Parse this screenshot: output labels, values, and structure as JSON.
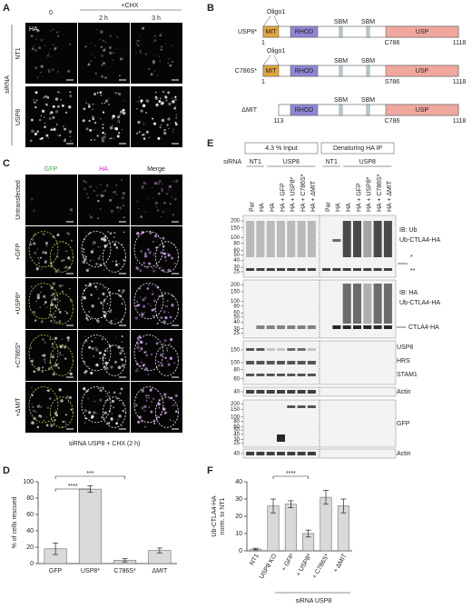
{
  "panel_a": {
    "label": "A",
    "timepoints": [
      "0",
      "2 h",
      "3 h"
    ],
    "treatment": "+CHX",
    "stain": "HA",
    "rows": [
      "NT1",
      "USP8"
    ],
    "row_group": "siRNA"
  },
  "panel_b": {
    "label": "B",
    "constructs": [
      {
        "name": "USP8*",
        "oligo": "Oligo1",
        "domains": [
          "MIT",
          "RHOD",
          "SBM",
          "SBM",
          "USP"
        ],
        "start": "1",
        "residue": "C786",
        "end": "1118"
      },
      {
        "name": "C786S*",
        "oligo": "Oligo1",
        "domains": [
          "MIT",
          "RHOD",
          "SBM",
          "SBM",
          "USP"
        ],
        "start": "1",
        "residue": "S786",
        "end": "1118"
      },
      {
        "name": "ΔMIT",
        "domains": [
          "RHOD",
          "SBM",
          "SBM",
          "USP"
        ],
        "start": "113",
        "residue": "C786",
        "end": "1118"
      }
    ]
  },
  "panel_c": {
    "label": "C",
    "columns": [
      "GFP",
      "HA",
      "Merge"
    ],
    "rows": [
      "Untransfected",
      "+GFP",
      "+USP8*",
      "+C786S*",
      "+ΔMIT"
    ],
    "caption": "siRNA USP8 + CHX (2 h)"
  },
  "panel_e": {
    "label": "E",
    "input_title": "4.3 % Input",
    "ip_title": "Denaturing HA IP",
    "sirna": "siRNA",
    "input_groups": [
      "NT1",
      "USP8"
    ],
    "ip_groups": [
      "NT1",
      "USP8"
    ],
    "input_lanes": [
      "Par",
      "HA",
      "HA",
      "HA + GFP",
      "HA + USP8*",
      "HA + C786S*",
      "HA + ΔMIT"
    ],
    "ip_lanes": [
      "Par",
      "HA",
      "HA",
      "HA + GFP",
      "HA + USP8*",
      "HA + C786S*",
      "HA + ΔMIT"
    ],
    "blots": [
      {
        "markers": [
          200,
          150,
          100,
          80,
          60,
          50,
          40,
          30,
          25
        ],
        "labels": [
          "IB: Ub",
          "Ub-CTLA4-HA",
          "*",
          "**"
        ]
      },
      {
        "markers": [
          200,
          150,
          100,
          80,
          60,
          50,
          40,
          30,
          25
        ],
        "labels": [
          "IB: HA",
          "Ub-CTLA4-HA",
          "CTLA4-HA"
        ]
      },
      {
        "markers": [
          150,
          100,
          80,
          60
        ],
        "labels": [
          "USP8",
          "HRS",
          "STAM1"
        ]
      },
      {
        "markers": [
          40
        ],
        "labels": [
          "Actin"
        ]
      },
      {
        "markers": [
          200,
          150,
          100,
          80,
          60,
          50,
          40,
          30,
          25
        ],
        "labels": [
          "GFP"
        ]
      },
      {
        "markers": [
          40
        ],
        "labels": [
          "Actin"
        ]
      }
    ]
  },
  "chart_data": [
    {
      "type": "bar",
      "label": "D",
      "ylabel": [
        "% of cells rescued"
      ],
      "categories": [
        "GFP",
        "USP8*",
        "C786S*",
        "ΔMIT"
      ],
      "values": [
        18,
        91,
        4,
        16
      ],
      "errors": [
        7,
        4,
        2,
        3
      ],
      "color": "#d9d9d9",
      "ylim": [
        0,
        100
      ],
      "yticks": [
        0,
        20,
        40,
        60,
        80,
        100
      ],
      "annotations": [
        "****",
        "***"
      ]
    },
    {
      "type": "bar",
      "label": "F",
      "ylabel": [
        "Ub-CTLA4-HA",
        "norm. to NT1"
      ],
      "categories": [
        "NT1",
        "USP8 KO",
        "+ GFP",
        "+ USP8*",
        "+ C786S*",
        "+ ΔMIT"
      ],
      "values": [
        1,
        26,
        27,
        10,
        31,
        26
      ],
      "errors": [
        0.5,
        4,
        2,
        2,
        4,
        4
      ],
      "color": "#d9d9d9",
      "ylim": [
        0,
        40
      ],
      "yticks": [
        0,
        10,
        20,
        30,
        40
      ],
      "annotations": [
        "****"
      ],
      "group_label": "siRNA USP8"
    }
  ]
}
